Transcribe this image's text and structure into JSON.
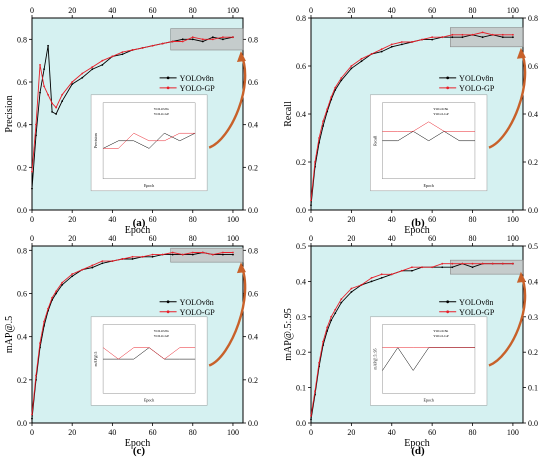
{
  "figure": {
    "colors": {
      "plot_bg": "#d5f1f1",
      "inset_bg": "#ffffff",
      "series1": "#000000",
      "series2": "#e8202a",
      "zoom_box": "#bfbfbf",
      "arrow": "#c8612a"
    }
  },
  "chart_data": [
    {
      "type": "line",
      "panel_label": "(a)",
      "xlabel": "Epoch",
      "ylabel": "Precision",
      "xlim": [
        0,
        105
      ],
      "ylim": [
        0,
        0.9
      ],
      "xticks": [
        0,
        20,
        40,
        60,
        80,
        100
      ],
      "yticks": [
        0.0,
        0.2,
        0.4,
        0.6,
        0.8
      ],
      "legend": "center-right",
      "grid": false,
      "zoom_range": {
        "x": [
          70,
          100
        ],
        "y": [
          0.75,
          0.85
        ]
      },
      "series": [
        {
          "name": "YOLOv8n",
          "x": [
            0,
            2,
            4,
            6,
            8,
            10,
            12,
            15,
            20,
            25,
            30,
            35,
            40,
            45,
            50,
            55,
            60,
            65,
            70,
            75,
            80,
            85,
            90,
            95,
            100
          ],
          "values": [
            0.1,
            0.35,
            0.55,
            0.66,
            0.77,
            0.46,
            0.45,
            0.51,
            0.59,
            0.62,
            0.66,
            0.68,
            0.72,
            0.73,
            0.75,
            0.76,
            0.77,
            0.78,
            0.79,
            0.8,
            0.8,
            0.79,
            0.81,
            0.8,
            0.81
          ]
        },
        {
          "name": "YOLO-GP",
          "x": [
            0,
            2,
            4,
            6,
            8,
            10,
            12,
            15,
            20,
            25,
            30,
            35,
            40,
            45,
            50,
            55,
            60,
            65,
            70,
            75,
            80,
            85,
            90,
            95,
            100
          ],
          "values": [
            0.18,
            0.4,
            0.68,
            0.58,
            0.54,
            0.5,
            0.48,
            0.54,
            0.6,
            0.64,
            0.67,
            0.7,
            0.72,
            0.74,
            0.75,
            0.76,
            0.77,
            0.78,
            0.79,
            0.79,
            0.81,
            0.8,
            0.8,
            0.81,
            0.81
          ]
        }
      ]
    },
    {
      "type": "line",
      "panel_label": "(b)",
      "xlabel": "Epoch",
      "ylabel": "Recall",
      "xlim": [
        0,
        105
      ],
      "ylim": [
        0,
        0.8
      ],
      "xticks": [
        0,
        20,
        40,
        60,
        80,
        100
      ],
      "yticks": [
        0.0,
        0.2,
        0.4,
        0.6,
        0.8
      ],
      "legend": "center-right",
      "grid": false,
      "zoom_range": {
        "x": [
          70,
          100
        ],
        "y": [
          0.68,
          0.76
        ]
      },
      "series": [
        {
          "name": "YOLOv8n",
          "x": [
            0,
            2,
            4,
            6,
            8,
            10,
            12,
            15,
            20,
            25,
            30,
            35,
            40,
            45,
            50,
            55,
            60,
            65,
            70,
            75,
            80,
            85,
            90,
            95,
            100
          ],
          "values": [
            0.02,
            0.18,
            0.28,
            0.35,
            0.41,
            0.46,
            0.5,
            0.54,
            0.59,
            0.62,
            0.65,
            0.66,
            0.68,
            0.69,
            0.7,
            0.71,
            0.71,
            0.72,
            0.72,
            0.72,
            0.73,
            0.72,
            0.73,
            0.72,
            0.72
          ]
        },
        {
          "name": "YOLO-GP",
          "x": [
            0,
            2,
            4,
            6,
            8,
            10,
            12,
            15,
            20,
            25,
            30,
            35,
            40,
            45,
            50,
            55,
            60,
            65,
            70,
            75,
            80,
            85,
            90,
            95,
            100
          ],
          "values": [
            0.04,
            0.2,
            0.3,
            0.37,
            0.42,
            0.47,
            0.51,
            0.55,
            0.6,
            0.63,
            0.65,
            0.67,
            0.69,
            0.7,
            0.7,
            0.71,
            0.72,
            0.72,
            0.73,
            0.73,
            0.73,
            0.74,
            0.73,
            0.73,
            0.73
          ]
        }
      ]
    },
    {
      "type": "line",
      "panel_label": "(c)",
      "xlabel": "Epoch",
      "ylabel": "mAP@.5",
      "xlim": [
        0,
        105
      ],
      "ylim": [
        0,
        0.82
      ],
      "xticks": [
        0,
        20,
        40,
        60,
        80,
        100
      ],
      "yticks": [
        0.0,
        0.2,
        0.4,
        0.6,
        0.8
      ],
      "legend": "center-right",
      "grid": false,
      "zoom_range": {
        "x": [
          70,
          100
        ],
        "y": [
          0.75,
          0.81
        ]
      },
      "series": [
        {
          "name": "YOLOv8n",
          "x": [
            0,
            2,
            4,
            6,
            8,
            10,
            12,
            15,
            20,
            25,
            30,
            35,
            40,
            45,
            50,
            55,
            60,
            65,
            70,
            75,
            80,
            85,
            90,
            95,
            100
          ],
          "values": [
            0.02,
            0.2,
            0.35,
            0.45,
            0.52,
            0.57,
            0.6,
            0.64,
            0.68,
            0.71,
            0.72,
            0.74,
            0.75,
            0.76,
            0.76,
            0.77,
            0.77,
            0.78,
            0.78,
            0.78,
            0.78,
            0.79,
            0.78,
            0.78,
            0.78
          ]
        },
        {
          "name": "YOLO-GP",
          "x": [
            0,
            2,
            4,
            6,
            8,
            10,
            12,
            15,
            20,
            25,
            30,
            35,
            40,
            45,
            50,
            55,
            60,
            65,
            70,
            75,
            80,
            85,
            90,
            95,
            100
          ],
          "values": [
            0.04,
            0.22,
            0.37,
            0.47,
            0.53,
            0.58,
            0.61,
            0.65,
            0.69,
            0.71,
            0.73,
            0.75,
            0.75,
            0.76,
            0.77,
            0.77,
            0.78,
            0.78,
            0.79,
            0.78,
            0.79,
            0.79,
            0.78,
            0.79,
            0.79
          ]
        }
      ]
    },
    {
      "type": "line",
      "panel_label": "(d)",
      "xlabel": "Epoch",
      "ylabel": "mAP@.5:.95",
      "xlim": [
        0,
        105
      ],
      "ylim": [
        0,
        0.5
      ],
      "xticks": [
        0,
        20,
        40,
        60,
        80,
        100
      ],
      "yticks": [
        0.0,
        0.1,
        0.2,
        0.3,
        0.4,
        0.5
      ],
      "legend": "center-right",
      "grid": false,
      "zoom_range": {
        "x": [
          70,
          100
        ],
        "y": [
          0.43,
          0.46
        ]
      },
      "series": [
        {
          "name": "YOLOv8n",
          "x": [
            0,
            2,
            4,
            6,
            8,
            10,
            12,
            15,
            20,
            25,
            30,
            35,
            40,
            45,
            50,
            55,
            60,
            65,
            70,
            75,
            80,
            85,
            90,
            95,
            100
          ],
          "values": [
            0.01,
            0.08,
            0.16,
            0.22,
            0.26,
            0.29,
            0.31,
            0.34,
            0.37,
            0.39,
            0.4,
            0.41,
            0.42,
            0.43,
            0.43,
            0.44,
            0.44,
            0.44,
            0.44,
            0.45,
            0.44,
            0.45,
            0.45,
            0.45,
            0.45
          ]
        },
        {
          "name": "YOLO-GP",
          "x": [
            0,
            2,
            4,
            6,
            8,
            10,
            12,
            15,
            20,
            25,
            30,
            35,
            40,
            45,
            50,
            55,
            60,
            65,
            70,
            75,
            80,
            85,
            90,
            95,
            100
          ],
          "values": [
            0.02,
            0.09,
            0.17,
            0.23,
            0.27,
            0.3,
            0.32,
            0.35,
            0.38,
            0.39,
            0.41,
            0.42,
            0.42,
            0.43,
            0.44,
            0.44,
            0.44,
            0.45,
            0.45,
            0.45,
            0.45,
            0.45,
            0.45,
            0.45,
            0.45
          ]
        }
      ]
    }
  ]
}
